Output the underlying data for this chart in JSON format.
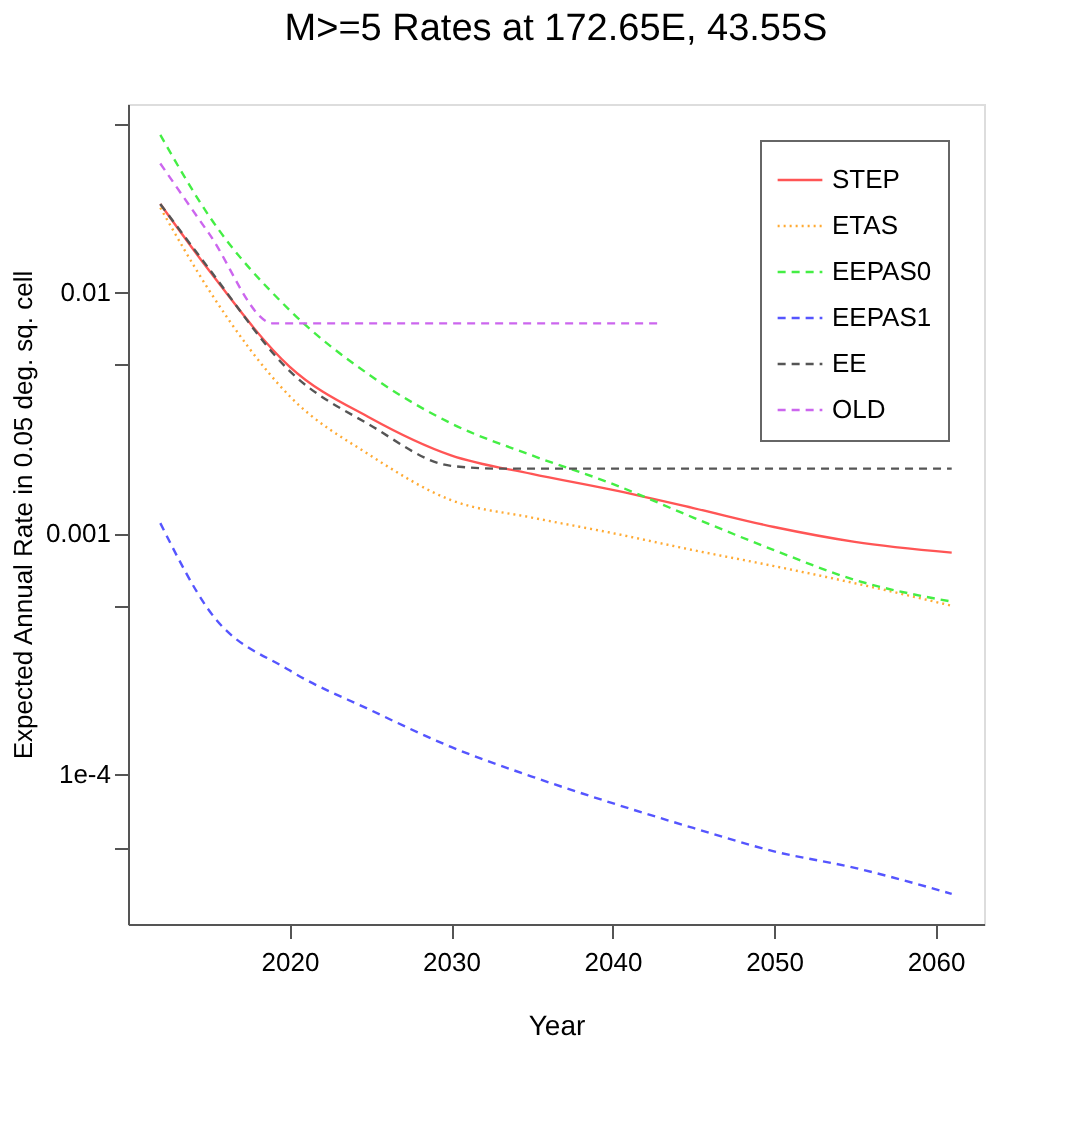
{
  "chart_data": {
    "type": "line",
    "title": "M>=5 Rates at 172.65E, 43.55S",
    "xlabel": "Year",
    "ylabel": "Expected Annual Rate in 0.05 deg. sq. cell",
    "log": "y",
    "grid": false,
    "legend": "top right",
    "marker": "none",
    "xlim": [
      2010,
      2063
    ],
    "xticks": [
      2020,
      2030,
      2040,
      2050,
      2060
    ],
    "ylim": [
      2.4e-05,
      0.06
    ],
    "yticks": [
      {
        "value": 0.05,
        "label": null
      },
      0.01,
      {
        "value": 0.005,
        "label": null
      },
      0.001,
      {
        "value": 0.0005,
        "label": null
      },
      {
        "value": 0.0001,
        "label": "1e-4"
      },
      {
        "value": 5e-05,
        "label": null
      }
    ],
    "x": [
      2012,
      2015,
      2020,
      2025,
      2030,
      2035,
      2040,
      2045,
      2050,
      2055,
      2061
    ],
    "series": [
      {
        "name": "STEP",
        "color": "#ff5555",
        "line_style": "solid",
        "values": [
          0.0231,
          0.0123,
          0.0049,
          0.003,
          0.0021,
          0.00176,
          0.00151,
          0.00127,
          0.00106,
          0.00092,
          0.00083
        ]
      },
      {
        "name": "ETAS",
        "color": "#ffaa33",
        "line_style": "dotted",
        "values": [
          0.0223,
          0.0102,
          0.0037,
          0.0021,
          0.00137,
          0.00116,
          0.001,
          0.00085,
          0.00073,
          0.00062,
          0.0005
        ]
      },
      {
        "name": "EEPAS0",
        "color": "#44ee44",
        "line_style": "dashed",
        "values": [
          0.0447,
          0.0207,
          0.0084,
          0.0045,
          0.00285,
          0.0021,
          0.0016,
          0.00116,
          0.00085,
          0.00064,
          0.00052
        ]
      },
      {
        "name": "EEPAS1",
        "color": "#5555ff",
        "line_style": "dashed",
        "values": [
          0.0011,
          0.00048,
          0.00027,
          0.000185,
          0.00013,
          9.8e-05,
          7.6e-05,
          6e-05,
          4.8e-05,
          4.1e-05,
          3.2e-05
        ]
      },
      {
        "name": "EE",
        "color": "#555555",
        "line_style": "dashed",
        "x": [
          2012,
          2015,
          2020,
          2025,
          2030,
          2033,
          2040,
          2050,
          2061
        ],
        "values": [
          0.0231,
          0.0125,
          0.0047,
          0.0028,
          0.0019,
          0.00185,
          0.00185,
          0.00185,
          0.00185
        ]
      },
      {
        "name": "OLD",
        "color": "#cc66ee",
        "line_style": "dashed",
        "x": [
          2012,
          2015,
          2019,
          2030,
          2043
        ],
        "values": [
          0.034,
          0.0175,
          0.0074,
          0.0074,
          0.0074
        ]
      }
    ]
  }
}
